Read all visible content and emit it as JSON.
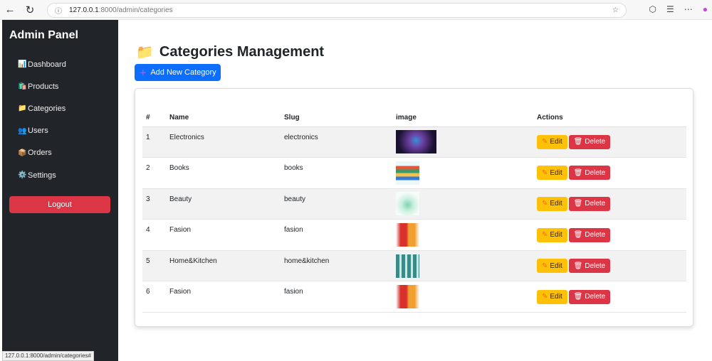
{
  "browser": {
    "url_host": "127.0.0.1",
    "url_path": ":8000/admin/categories",
    "status_url": "127.0.0.1:8000/admin/categories#"
  },
  "sidebar": {
    "title": "Admin Panel",
    "items": [
      {
        "icon": "📊",
        "label": "Dashboard"
      },
      {
        "icon": "🛍️",
        "label": "Products"
      },
      {
        "icon": "📁",
        "label": "Categories"
      },
      {
        "icon": "👥",
        "label": "Users"
      },
      {
        "icon": "📦",
        "label": "Orders"
      },
      {
        "icon": "⚙️",
        "label": "Settings"
      }
    ],
    "logout": "Logout"
  },
  "main": {
    "title_icon": "📁",
    "title": "Categories Management",
    "add_button": "Add New Category",
    "table": {
      "headers": [
        "#",
        "Name",
        "Slug",
        "image",
        "Actions"
      ],
      "rows": [
        {
          "id": "1",
          "name": "Electronics",
          "slug": "electronics"
        },
        {
          "id": "2",
          "name": "Books",
          "slug": "books"
        },
        {
          "id": "3",
          "name": "Beauty",
          "slug": "beauty"
        },
        {
          "id": "4",
          "name": "Fasion",
          "slug": "fasion"
        },
        {
          "id": "5",
          "name": "Home&Kitchen",
          "slug": "home&kitchen"
        },
        {
          "id": "6",
          "name": "Fasion",
          "slug": "fasion"
        }
      ],
      "edit_label": "Edit",
      "delete_label": "Delete"
    }
  },
  "colors": {
    "sidebar": "#212529",
    "primary": "#0d6efd",
    "danger": "#dc3545",
    "warning": "#ffc107"
  }
}
